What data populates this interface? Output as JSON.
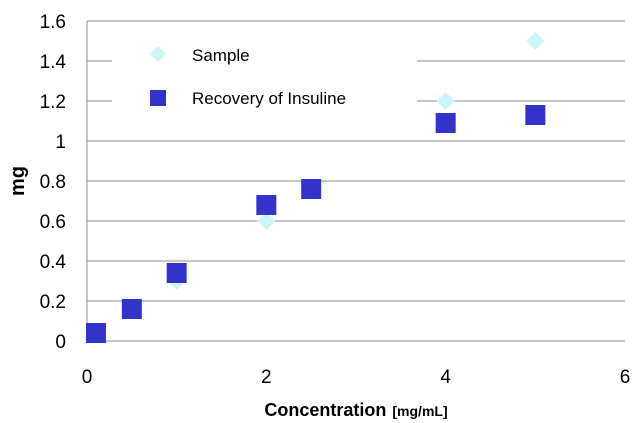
{
  "chart_data": {
    "type": "scatter",
    "title": "",
    "xlabel": "Concentration",
    "xlabel_unit": "[mg/mL]",
    "ylabel": "mg",
    "xlim": [
      0,
      6
    ],
    "ylim": [
      0,
      1.6
    ],
    "x_ticks": [
      "0",
      "2",
      "4",
      "6"
    ],
    "y_ticks": [
      "0",
      "0.2",
      "0.4",
      "0.6",
      "0.8",
      "1",
      "1.2",
      "1.4",
      "1.6"
    ],
    "grid": "horizontal",
    "legend_position": "top-left",
    "series": [
      {
        "name": "Sample",
        "marker": "diamond",
        "color": "#ccf5fa",
        "points": [
          {
            "x": 0.1,
            "y": 0.03
          },
          {
            "x": 0.5,
            "y": 0.15
          },
          {
            "x": 1,
            "y": 0.3
          },
          {
            "x": 2,
            "y": 0.6
          },
          {
            "x": 2.5,
            "y": 0.75
          },
          {
            "x": 4,
            "y": 1.2
          },
          {
            "x": 5,
            "y": 1.5
          }
        ]
      },
      {
        "name": "Recovery of Insuline",
        "marker": "square",
        "color": "#3333cc",
        "points": [
          {
            "x": 0.1,
            "y": 0.04
          },
          {
            "x": 0.5,
            "y": 0.16
          },
          {
            "x": 1,
            "y": 0.34
          },
          {
            "x": 2,
            "y": 0.68
          },
          {
            "x": 2.5,
            "y": 0.76
          },
          {
            "x": 4,
            "y": 1.09
          },
          {
            "x": 5,
            "y": 1.13
          }
        ]
      }
    ]
  }
}
